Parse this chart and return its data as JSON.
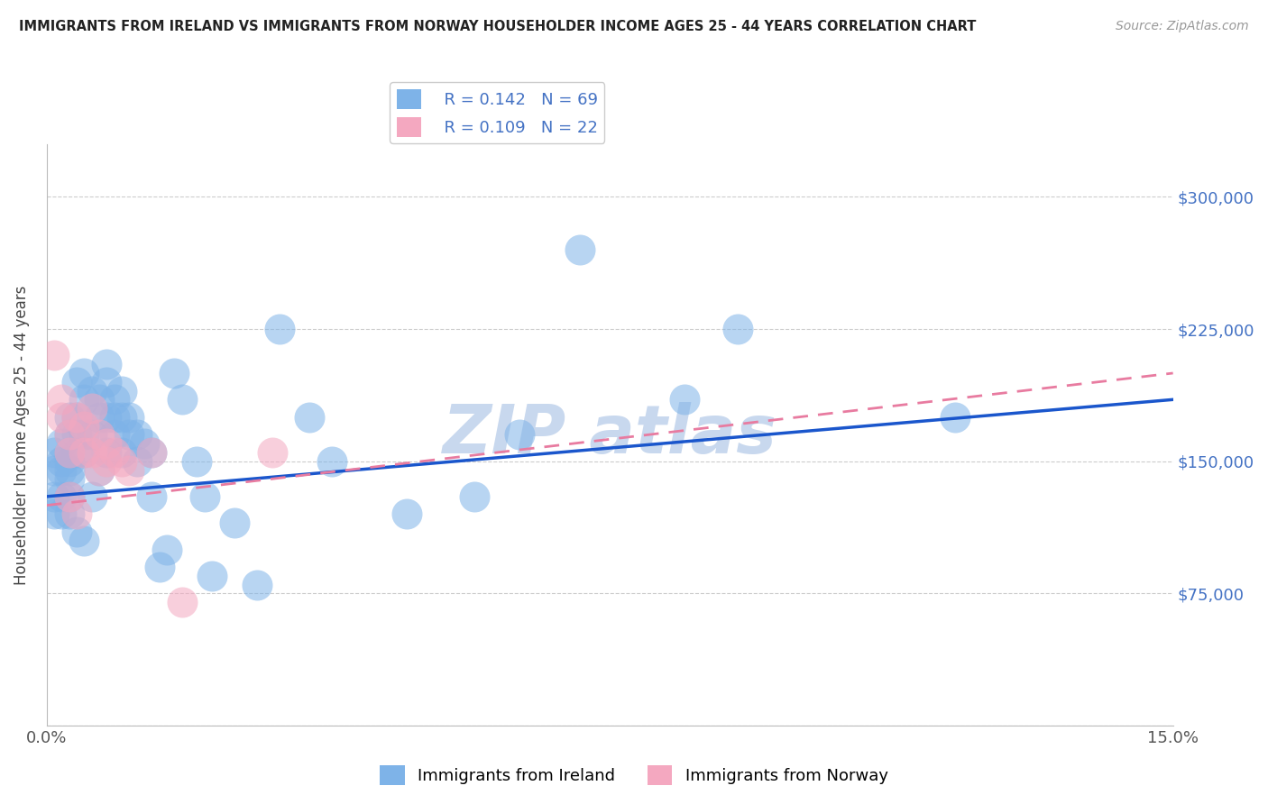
{
  "title": "IMMIGRANTS FROM IRELAND VS IMMIGRANTS FROM NORWAY HOUSEHOLDER INCOME AGES 25 - 44 YEARS CORRELATION CHART",
  "source": "Source: ZipAtlas.com",
  "xlabel": "",
  "ylabel": "Householder Income Ages 25 - 44 years",
  "xlim": [
    0.0,
    0.15
  ],
  "ylim": [
    0,
    330000
  ],
  "xticks": [
    0.0,
    0.03,
    0.06,
    0.09,
    0.12,
    0.15
  ],
  "xticklabels": [
    "0.0%",
    "",
    "",
    "",
    "",
    "15.0%"
  ],
  "ytick_positions": [
    0,
    75000,
    150000,
    225000,
    300000
  ],
  "ytick_labels": [
    "",
    "$75,000",
    "$150,000",
    "$225,000",
    "$300,000"
  ],
  "R_ireland": 0.142,
  "N_ireland": 69,
  "R_norway": 0.109,
  "N_norway": 22,
  "ireland_color": "#7EB3E8",
  "norway_color": "#F4A8C0",
  "ireland_line_color": "#1A56CC",
  "norway_line_color": "#E87BA0",
  "watermark_color": "#C8D8EE",
  "ireland_x": [
    0.001,
    0.001,
    0.001,
    0.001,
    0.002,
    0.002,
    0.002,
    0.002,
    0.002,
    0.003,
    0.003,
    0.003,
    0.003,
    0.003,
    0.003,
    0.003,
    0.003,
    0.004,
    0.004,
    0.004,
    0.004,
    0.004,
    0.005,
    0.005,
    0.005,
    0.005,
    0.005,
    0.006,
    0.006,
    0.006,
    0.007,
    0.007,
    0.007,
    0.008,
    0.008,
    0.008,
    0.008,
    0.009,
    0.009,
    0.009,
    0.01,
    0.01,
    0.01,
    0.011,
    0.011,
    0.012,
    0.012,
    0.013,
    0.014,
    0.014,
    0.015,
    0.016,
    0.017,
    0.018,
    0.02,
    0.021,
    0.022,
    0.025,
    0.028,
    0.031,
    0.035,
    0.038,
    0.048,
    0.057,
    0.063,
    0.071,
    0.085,
    0.092,
    0.121
  ],
  "ireland_y": [
    155000,
    145000,
    130000,
    120000,
    160000,
    150000,
    145000,
    130000,
    120000,
    175000,
    165000,
    155000,
    150000,
    145000,
    140000,
    130000,
    120000,
    195000,
    175000,
    165000,
    155000,
    110000,
    200000,
    185000,
    165000,
    155000,
    105000,
    190000,
    165000,
    130000,
    185000,
    175000,
    145000,
    205000,
    195000,
    175000,
    155000,
    185000,
    175000,
    165000,
    190000,
    175000,
    155000,
    175000,
    165000,
    165000,
    150000,
    160000,
    155000,
    130000,
    90000,
    100000,
    200000,
    185000,
    150000,
    130000,
    85000,
    115000,
    80000,
    225000,
    175000,
    150000,
    120000,
    130000,
    165000,
    270000,
    185000,
    225000,
    175000
  ],
  "norway_x": [
    0.001,
    0.002,
    0.002,
    0.003,
    0.003,
    0.003,
    0.004,
    0.004,
    0.005,
    0.005,
    0.006,
    0.006,
    0.007,
    0.007,
    0.008,
    0.008,
    0.009,
    0.01,
    0.011,
    0.014,
    0.018,
    0.03
  ],
  "norway_y": [
    210000,
    185000,
    175000,
    165000,
    155000,
    130000,
    175000,
    120000,
    170000,
    155000,
    180000,
    155000,
    165000,
    145000,
    160000,
    150000,
    155000,
    150000,
    145000,
    155000,
    70000,
    155000
  ],
  "ireland_trend_x0": 0.0,
  "ireland_trend_y0": 130000,
  "ireland_trend_x1": 0.15,
  "ireland_trend_y1": 185000,
  "norway_trend_x0": 0.0,
  "norway_trend_y0": 125000,
  "norway_trend_x1": 0.15,
  "norway_trend_y1": 200000
}
